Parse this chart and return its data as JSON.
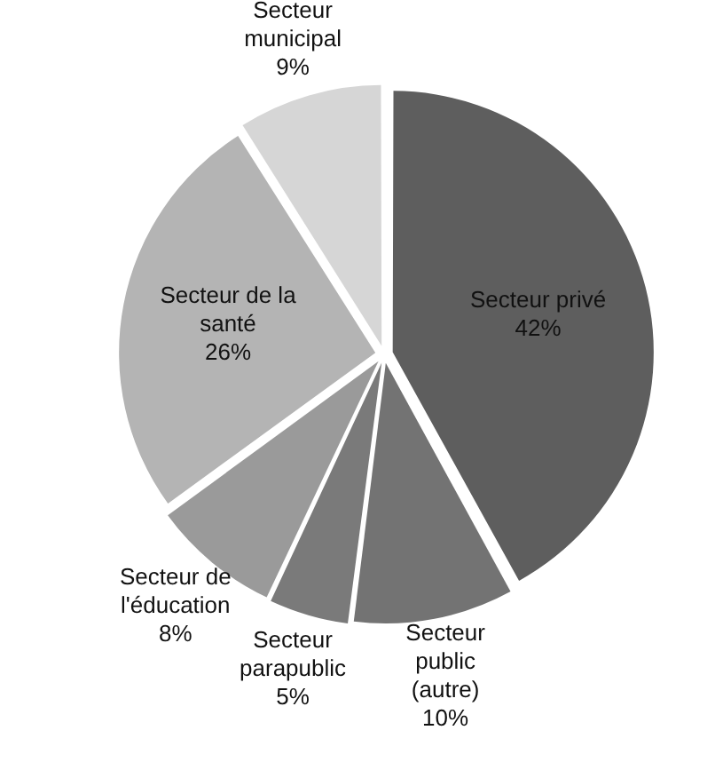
{
  "chart_data": {
    "type": "pie",
    "categories": [
      "Secteur privé",
      "Secteur public (autre)",
      "Secteur parapublic",
      "Secteur de l'éducation",
      "Secteur de la santé",
      "Secteur municipal"
    ],
    "values": [
      42,
      10,
      5,
      8,
      26,
      9
    ],
    "colors": [
      "#5e5e5e",
      "#737373",
      "#7a7a7a",
      "#9a9a9a",
      "#b4b4b4",
      "#d6d6d6"
    ],
    "value_labels": [
      "42%",
      "10%",
      "5%",
      "8%",
      "26%",
      "9%"
    ],
    "legend": false
  }
}
